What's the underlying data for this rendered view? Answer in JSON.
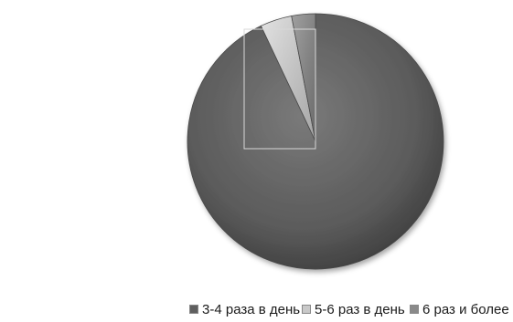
{
  "chart_data": {
    "type": "pie",
    "title": "",
    "categories": [
      "3-4 раза в день",
      "5-6 раз в день",
      "6 раз и более"
    ],
    "values": [
      93,
      4,
      3
    ],
    "colors": [
      "#5f5f5f",
      "#c9c9c9",
      "#8a8a8a"
    ],
    "legend_position": "bottom",
    "style": "3d-shaded"
  },
  "legend": {
    "items": [
      {
        "label": "3-4 раза в день"
      },
      {
        "label": "5-6 раз в день"
      },
      {
        "label": "6 раз и более"
      }
    ]
  }
}
